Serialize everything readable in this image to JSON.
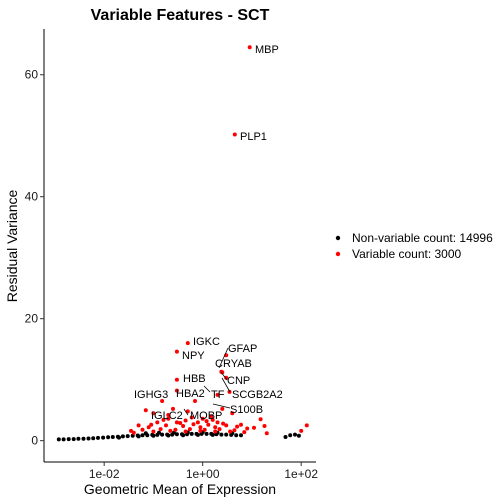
{
  "chart_data": {
    "type": "scatter",
    "title": "Variable Features - SCT",
    "xlabel": "Geometric Mean of Expression",
    "ylabel": "Residual Variance",
    "x_scale": "log10",
    "xlim": [
      0.0006,
      200
    ],
    "ylim": [
      -3.5,
      67.5
    ],
    "x_ticks": [
      0.01,
      1,
      100
    ],
    "x_tick_labels": [
      "1e-02",
      "1e+00",
      "1e+02"
    ],
    "y_ticks": [
      0,
      20,
      40,
      60
    ],
    "y_tick_labels": [
      "0",
      "20",
      "40",
      "60"
    ],
    "grid": false,
    "legend_position": "right",
    "series": [
      {
        "name": "Non-variable count: 14996",
        "color": "#000000",
        "points": [
          [
            0.0012,
            0.2
          ],
          [
            0.0015,
            0.2
          ],
          [
            0.0019,
            0.25
          ],
          [
            0.0024,
            0.25
          ],
          [
            0.003,
            0.3
          ],
          [
            0.0038,
            0.3
          ],
          [
            0.0048,
            0.35
          ],
          [
            0.006,
            0.4
          ],
          [
            0.0075,
            0.45
          ],
          [
            0.0095,
            0.5
          ],
          [
            0.012,
            0.55
          ],
          [
            0.015,
            0.6
          ],
          [
            0.019,
            0.65
          ],
          [
            0.024,
            0.7
          ],
          [
            0.03,
            0.75
          ],
          [
            0.038,
            0.8
          ],
          [
            0.048,
            0.85
          ],
          [
            0.06,
            0.9
          ],
          [
            0.075,
            0.9
          ],
          [
            0.095,
            0.95
          ],
          [
            0.12,
            0.95
          ],
          [
            0.15,
            1.0
          ],
          [
            0.19,
            1.0
          ],
          [
            0.24,
            1.0
          ],
          [
            0.3,
            1.05
          ],
          [
            0.38,
            1.05
          ],
          [
            0.48,
            1.05
          ],
          [
            0.6,
            1.1
          ],
          [
            0.75,
            1.1
          ],
          [
            0.95,
            1.1
          ],
          [
            1.2,
            1.1
          ],
          [
            1.5,
            1.1
          ],
          [
            1.9,
            1.05
          ],
          [
            2.4,
            1.0
          ],
          [
            3.0,
            1.0
          ],
          [
            3.8,
            0.95
          ],
          [
            4.8,
            0.9
          ],
          [
            6.0,
            0.9
          ],
          [
            0.02,
            0.5
          ],
          [
            0.05,
            0.7
          ],
          [
            0.1,
            0.8
          ],
          [
            0.2,
            0.85
          ],
          [
            0.4,
            0.9
          ],
          [
            0.8,
            0.95
          ],
          [
            1.6,
            0.95
          ],
          [
            0.07,
            1.2
          ],
          [
            0.13,
            1.3
          ],
          [
            0.26,
            1.3
          ],
          [
            0.5,
            1.35
          ],
          [
            1.0,
            1.4
          ],
          [
            2.0,
            1.3
          ],
          [
            4.0,
            1.2
          ],
          [
            48,
            0.6
          ],
          [
            60,
            0.9
          ],
          [
            75,
            1.0
          ],
          [
            90,
            0.8
          ]
        ]
      },
      {
        "name": "Variable count: 3000",
        "color": "#ff0000",
        "points": [
          [
            9,
            64.5
          ],
          [
            4.5,
            50.2
          ],
          [
            0.5,
            16.0
          ],
          [
            3.0,
            14.0
          ],
          [
            0.3,
            14.6
          ],
          [
            2.4,
            11.3
          ],
          [
            2.5,
            11.2
          ],
          [
            3.0,
            10.3
          ],
          [
            0.3,
            10.0
          ],
          [
            3.5,
            8.0
          ],
          [
            2.0,
            7.5
          ],
          [
            0.3,
            8.2
          ],
          [
            0.7,
            6.5
          ],
          [
            0.15,
            6.5
          ],
          [
            0.07,
            5.0
          ],
          [
            0.25,
            5.2
          ],
          [
            0.5,
            4.8
          ],
          [
            2.5,
            5.2
          ],
          [
            0.1,
            4.5
          ],
          [
            0.2,
            4.2
          ],
          [
            0.6,
            3.8
          ],
          [
            1.5,
            4.0
          ],
          [
            4.0,
            4.5
          ],
          [
            15,
            3.5
          ],
          [
            0.12,
            3.0
          ],
          [
            0.3,
            3.0
          ],
          [
            0.8,
            3.0
          ],
          [
            1.2,
            3.2
          ],
          [
            2.0,
            3.0
          ],
          [
            0.05,
            2.5
          ],
          [
            0.08,
            2.2
          ],
          [
            0.18,
            2.5
          ],
          [
            0.4,
            2.4
          ],
          [
            0.9,
            2.2
          ],
          [
            1.8,
            2.2
          ],
          [
            3.0,
            2.5
          ],
          [
            5.0,
            2.3
          ],
          [
            8.0,
            2.0
          ],
          [
            0.06,
            1.8
          ],
          [
            0.14,
            1.9
          ],
          [
            0.28,
            1.8
          ],
          [
            0.55,
            1.9
          ],
          [
            1.1,
            1.8
          ],
          [
            2.2,
            1.9
          ],
          [
            4.4,
            1.7
          ],
          [
            0.1,
            1.5
          ],
          [
            0.22,
            1.6
          ],
          [
            0.45,
            1.5
          ],
          [
            0.9,
            1.6
          ],
          [
            1.8,
            1.5
          ],
          [
            3.6,
            1.5
          ],
          [
            7.0,
            1.4
          ],
          [
            0.04,
            1.3
          ],
          [
            0.035,
            1.6
          ],
          [
            0.09,
            2.6
          ],
          [
            0.16,
            3.4
          ],
          [
            0.35,
            2.9
          ],
          [
            0.65,
            2.7
          ],
          [
            1.3,
            2.6
          ],
          [
            2.6,
            2.8
          ],
          [
            6.0,
            2.6
          ],
          [
            11,
            2.1
          ],
          [
            18,
            2.4
          ],
          [
            130,
            2.5
          ],
          [
            100,
            1.6
          ],
          [
            20,
            1.2
          ],
          [
            1.0,
            3.6
          ],
          [
            0.2,
            3.6
          ],
          [
            0.45,
            3.3
          ],
          [
            1.6,
            3.4
          ]
        ]
      }
    ],
    "annotations": [
      {
        "text": "MBP"
      },
      {
        "text": "PLP1"
      },
      {
        "text": "IGKC"
      },
      {
        "text": "GFAP"
      },
      {
        "text": "NPY"
      },
      {
        "text": "CRYAB"
      },
      {
        "text": "HBB"
      },
      {
        "text": "CNP"
      },
      {
        "text": "IGHG3"
      },
      {
        "text": "HBA2"
      },
      {
        "text": "TF"
      },
      {
        "text": "SCGB2A2"
      },
      {
        "text": "S100B"
      },
      {
        "text": "IGLC2"
      },
      {
        "text": "MOBP"
      }
    ]
  }
}
